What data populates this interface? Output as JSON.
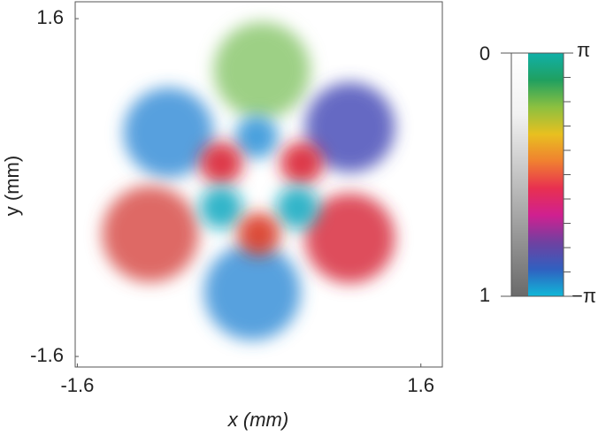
{
  "chart_data": {
    "type": "blobs",
    "x_label": "x (mm)",
    "y_label": "y (mm)",
    "xlim": [
      -1.62,
      1.8
    ],
    "ylim": [
      -1.7,
      1.76
    ],
    "xticks": [
      -1.6,
      1.6
    ],
    "yticks": [
      -1.6,
      1.6
    ],
    "lobes": {
      "x": [
        0.12,
        -0.75,
        0.94,
        -0.92,
        0.94,
        0.03,
        0.07,
        -0.26,
        0.49,
        -0.26,
        0.45,
        0.09
      ],
      "y": [
        1.11,
        0.52,
        0.57,
        -0.44,
        -0.48,
        -0.99,
        0.48,
        0.23,
        0.23,
        -0.19,
        -0.19,
        -0.44
      ],
      "radius": [
        0.45,
        0.42,
        0.42,
        0.45,
        0.42,
        0.45,
        0.2,
        0.2,
        0.2,
        0.2,
        0.2,
        0.2
      ],
      "colors": [
        "#8cc870",
        "#3a8fd8",
        "#4a4fb8",
        "#d8504a",
        "#d83040",
        "#3a90d8",
        "#2a90d8",
        "#d8182a",
        "#d8182a",
        "#12a8c0",
        "#12a8c0",
        "#d83018"
      ]
    },
    "colorbar": {
      "amplitude_labels": [
        "0",
        "1"
      ],
      "phase_labels": [
        "π",
        "−π"
      ],
      "phase_colors": [
        "#10b0a8",
        "#20a060",
        "#8cc040",
        "#e8c020",
        "#f08030",
        "#e83050",
        "#d02090",
        "#7040a0",
        "#3060c0",
        "#10b8d8"
      ]
    }
  }
}
